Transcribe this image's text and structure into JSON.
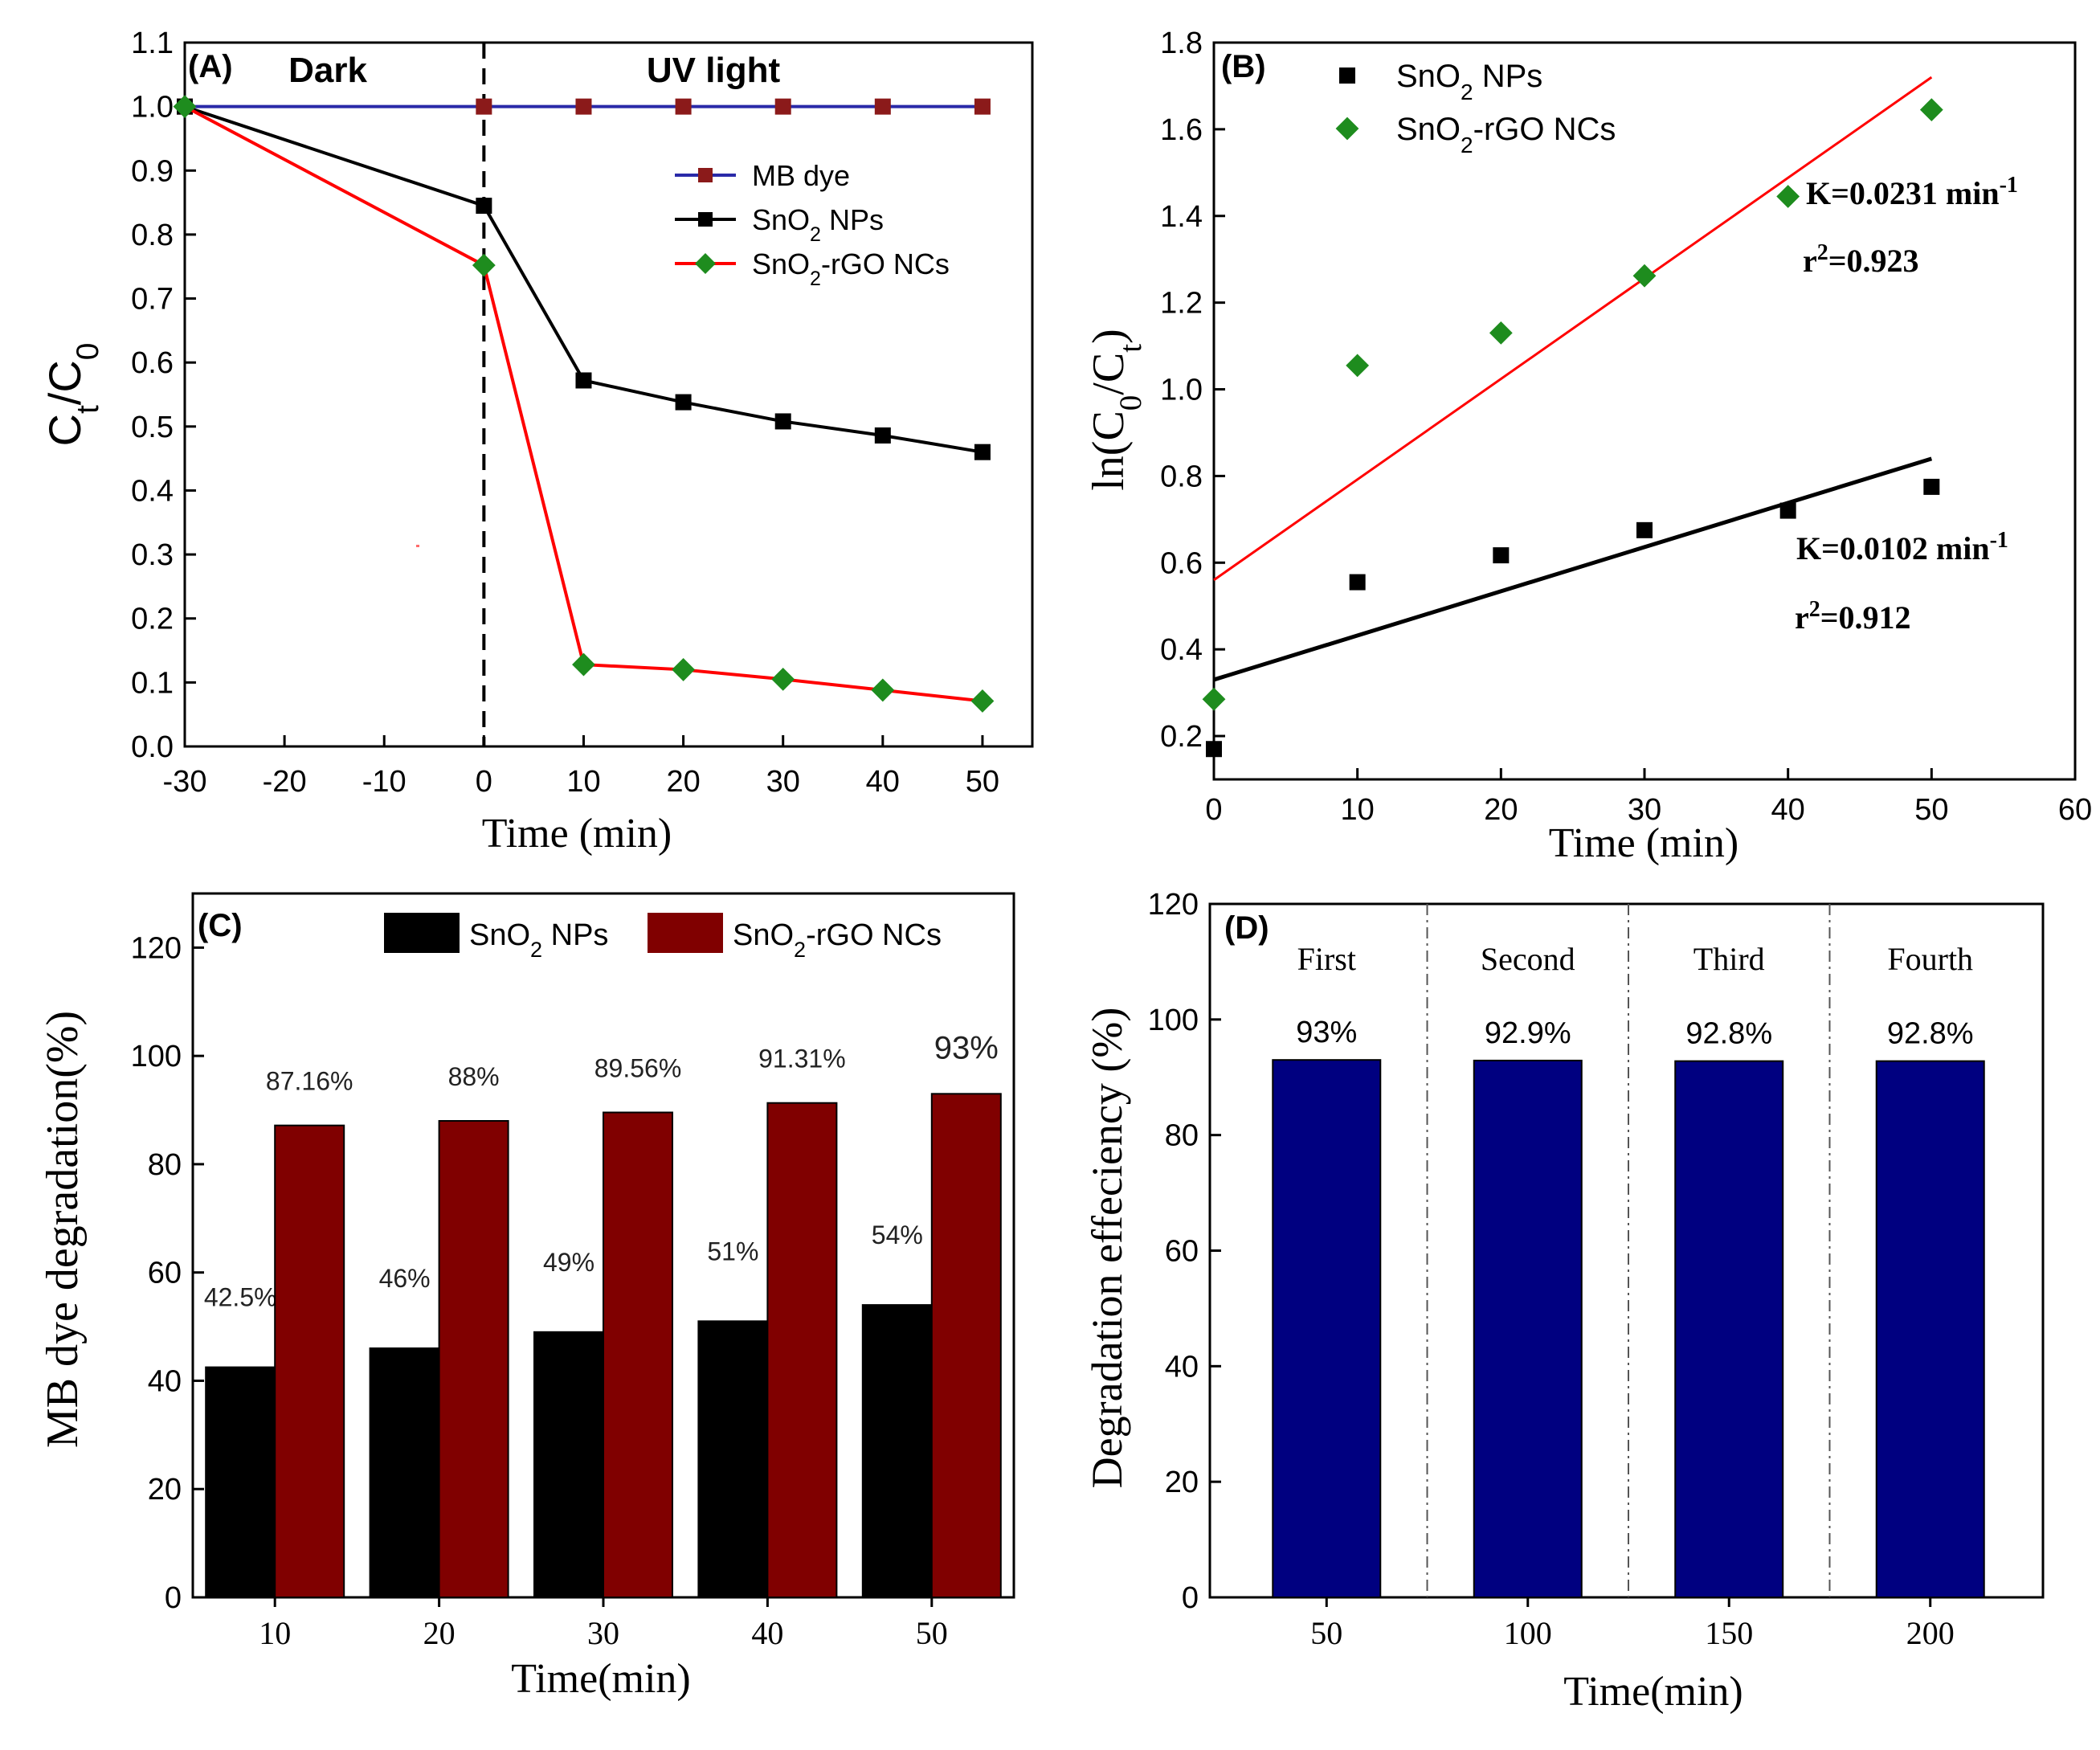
{
  "chart_data": [
    {
      "id": "A",
      "type": "line",
      "panel_label": "(A)",
      "xlabel": "Time (min)",
      "ylabel_main": "C",
      "ylabel_sub1": "t",
      "ylabel_mid": "/C",
      "ylabel_sub2": "0",
      "xlim": [
        -30,
        55
      ],
      "ylim": [
        0.0,
        1.1
      ],
      "xticks": [
        -30,
        -20,
        -10,
        0,
        10,
        20,
        30,
        40,
        50
      ],
      "xtick_labels": [
        "-30",
        "-20",
        "-10",
        "0",
        "10",
        "20",
        "30",
        "40",
        "50"
      ],
      "yticks": [
        0.0,
        0.1,
        0.2,
        0.3,
        0.4,
        0.5,
        0.6,
        0.7,
        0.8,
        0.9,
        1.0,
        1.1
      ],
      "ytick_labels": [
        "0.0",
        "0.1",
        "0.2",
        "0.3",
        "0.4",
        "0.5",
        "0.6",
        "0.7",
        "0.8",
        "0.9",
        "1.0",
        "1.1"
      ],
      "region_dark": "Dark",
      "region_uv": "UV light",
      "divider_x": 0,
      "series": [
        {
          "name": "MB dye",
          "line_color": "#2a2aa8",
          "marker_color": "#8b1a1a",
          "marker": "square",
          "x": [
            -30,
            0,
            10,
            20,
            30,
            40,
            50
          ],
          "y": [
            1.0,
            1.0,
            1.0,
            1.0,
            1.0,
            1.0,
            1.0
          ]
        },
        {
          "name": "SnO2 NPs",
          "line_color": "#000000",
          "marker_color": "#000000",
          "marker": "square",
          "x": [
            -30,
            0,
            10,
            20,
            30,
            40,
            50
          ],
          "y": [
            1.0,
            0.845,
            0.572,
            0.538,
            0.508,
            0.486,
            0.46
          ]
        },
        {
          "name": "SnO2-rGO NCs",
          "line_color": "#ff0000",
          "marker_color": "#1e8c1e",
          "marker": "diamond",
          "x": [
            -30,
            0,
            10,
            20,
            30,
            40,
            50
          ],
          "y": [
            1.0,
            0.752,
            0.128,
            0.12,
            0.105,
            0.088,
            0.071
          ]
        }
      ],
      "legend": [
        {
          "pre": "MB dye",
          "sub": "",
          "post": ""
        },
        {
          "pre": "SnO",
          "sub": "2",
          "post": " NPs"
        },
        {
          "pre": "SnO",
          "sub": "2",
          "post": "-rGO NCs"
        }
      ]
    },
    {
      "id": "B",
      "type": "scatter",
      "panel_label": "(B)",
      "xlabel": "Time (min)",
      "ylabel_pre": "ln(C",
      "ylabel_sub1": "0",
      "ylabel_mid": "/C",
      "ylabel_sub2": "t",
      "ylabel_post": ")",
      "xlim": [
        0,
        60
      ],
      "ylim": [
        0.1,
        1.8
      ],
      "xticks": [
        0,
        10,
        20,
        30,
        40,
        50,
        60
      ],
      "xtick_labels": [
        "0",
        "10",
        "20",
        "30",
        "40",
        "50",
        "60"
      ],
      "yticks": [
        0.2,
        0.4,
        0.6,
        0.8,
        1.0,
        1.2,
        1.4,
        1.6,
        1.8
      ],
      "ytick_labels": [
        "0.2",
        "0.4",
        "0.6",
        "0.8",
        "1.0",
        "1.2",
        "1.4",
        "1.6",
        "1.8"
      ],
      "series": [
        {
          "name": "SnO2 NPs",
          "marker": "square",
          "color": "#000000",
          "x": [
            0,
            10,
            20,
            30,
            40,
            50
          ],
          "y": [
            0.17,
            0.555,
            0.617,
            0.675,
            0.72,
            0.775
          ],
          "fit": {
            "x": [
              0,
              50
            ],
            "y": [
              0.33,
              0.84
            ],
            "color": "#000000"
          }
        },
        {
          "name": "SnO2-rGO NCs",
          "marker": "diamond",
          "color": "#1e8c1e",
          "x": [
            0,
            10,
            20,
            30,
            40,
            50
          ],
          "y": [
            0.285,
            1.055,
            1.13,
            1.262,
            1.445,
            1.645
          ],
          "fit": {
            "x": [
              0,
              50
            ],
            "y": [
              0.56,
              1.72
            ],
            "color": "#ff0000"
          }
        }
      ],
      "legend": [
        {
          "pre": "SnO",
          "sub": "2",
          "post": " NPs"
        },
        {
          "pre": "SnO",
          "sub": "2",
          "post": "-rGO NCs"
        }
      ],
      "annotations": {
        "k_rgo": "K=0.0231 min",
        "k_rgo_sup": "-1",
        "r2_rgo": "=0.923",
        "k_np": "K=0.0102 min",
        "k_np_sup": "-1",
        "r2_np": "=0.912",
        "r_letter": "r",
        "r_sup": "2"
      }
    },
    {
      "id": "C",
      "type": "bar",
      "panel_label": "(C)",
      "xlabel": "Time(min)",
      "ylabel": "MB dye degradation(%)",
      "ylim": [
        0,
        130
      ],
      "yticks": [
        0,
        20,
        40,
        60,
        80,
        100,
        120
      ],
      "ytick_labels": [
        "0",
        "20",
        "40",
        "60",
        "80",
        "100",
        "120"
      ],
      "categories": [
        "10",
        "20",
        "30",
        "40",
        "50"
      ],
      "series": [
        {
          "name": "SnO2 NPs",
          "color": "#000000",
          "values": [
            42.5,
            46,
            49,
            51,
            54
          ],
          "labels": [
            "42.5%",
            "46%",
            "49%",
            "51%",
            "54%"
          ]
        },
        {
          "name": "SnO2-rGO NCs",
          "color": "#800000",
          "values": [
            87.16,
            88,
            89.56,
            91.31,
            93
          ],
          "labels": [
            "87.16%",
            "88%",
            "89.56%",
            "91.31%",
            "93%"
          ]
        }
      ],
      "legend": [
        {
          "pre": "SnO",
          "sub": "2",
          "post": " NPs"
        },
        {
          "pre": "SnO",
          "sub": "2",
          "post": "-rGO NCs"
        }
      ]
    },
    {
      "id": "D",
      "type": "bar",
      "panel_label": "(D)",
      "xlabel": "Time(min)",
      "ylabel": "Degradation effeciency (%)",
      "ylim": [
        0,
        120
      ],
      "yticks": [
        0,
        20,
        40,
        60,
        80,
        100,
        120
      ],
      "ytick_labels": [
        "0",
        "20",
        "40",
        "60",
        "80",
        "100",
        "120"
      ],
      "categories": [
        "50",
        "100",
        "150",
        "200"
      ],
      "cycles": [
        "First",
        "Second",
        "Third",
        "Fourth"
      ],
      "values": [
        93,
        92.9,
        92.8,
        92.8
      ],
      "labels": [
        "93%",
        "92.9%",
        "92.8%",
        "92.8%"
      ],
      "color": "#000080"
    }
  ]
}
